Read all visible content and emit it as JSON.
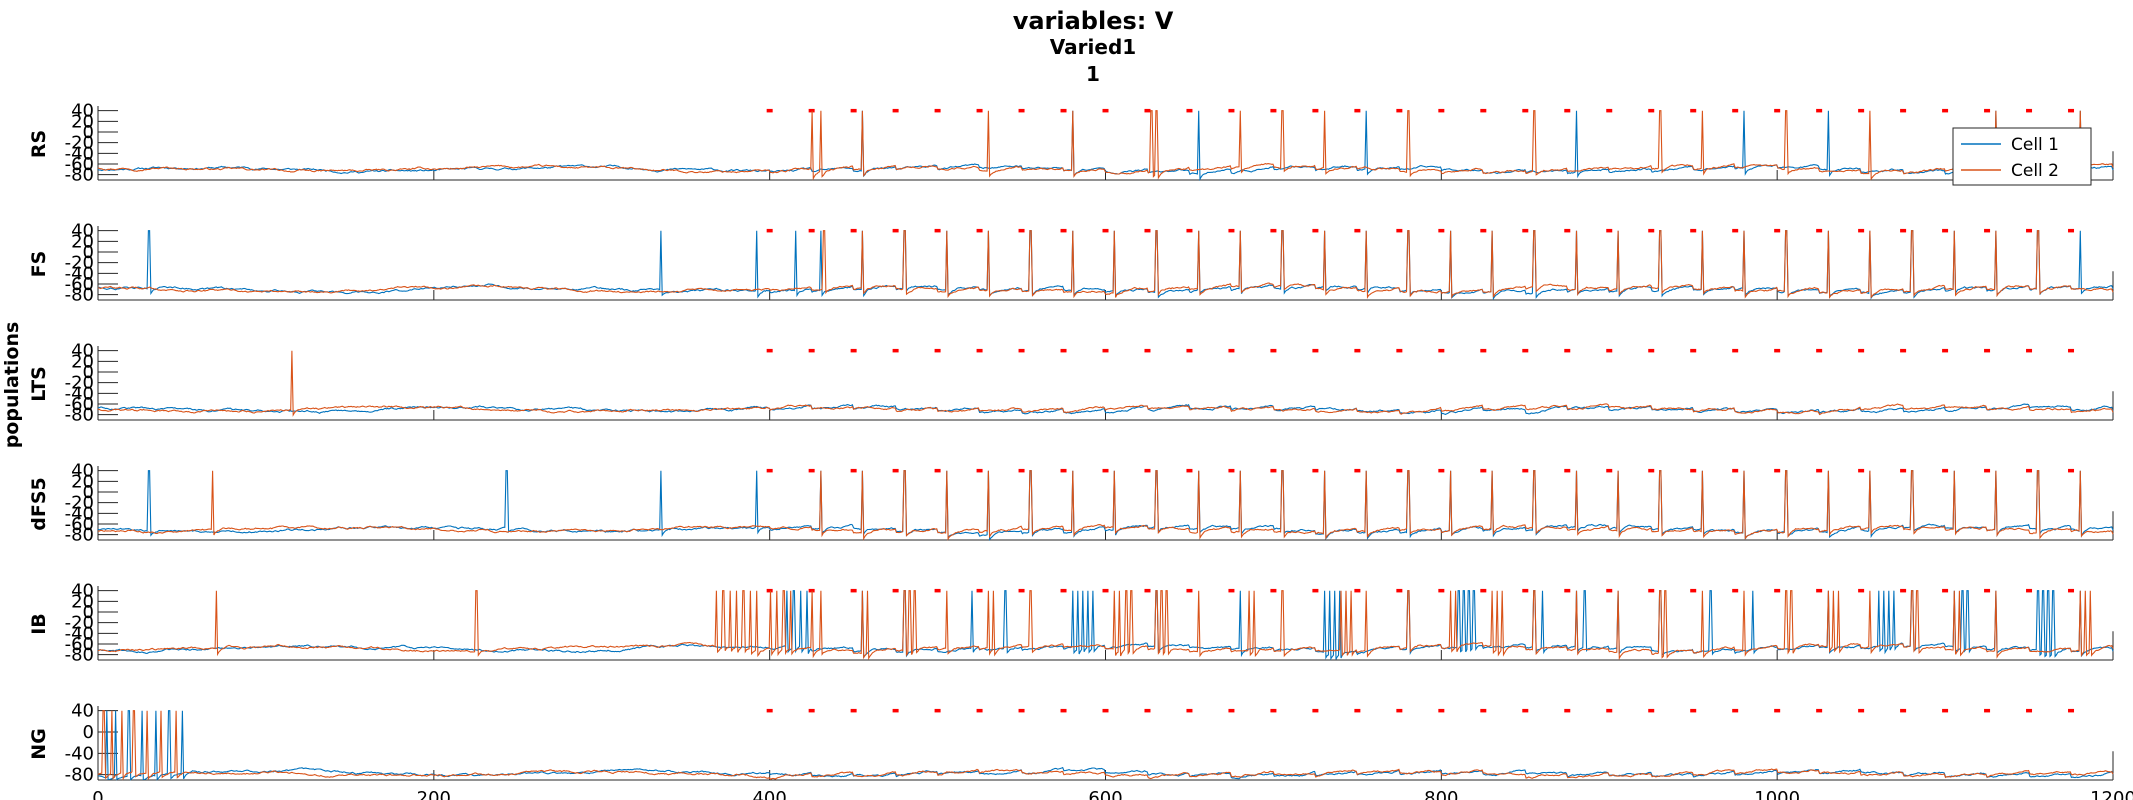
{
  "chart_data": {
    "type": "line",
    "title": "variables: V",
    "subtitle_1": "Varied1",
    "subtitle_2": "1",
    "common_ylabel": "populations",
    "x_ticks": [
      0,
      200,
      400,
      600,
      800,
      1000,
      1200
    ],
    "xlim": [
      0,
      1200
    ],
    "ylim": [
      -90,
      45
    ],
    "y_ticks": [
      40,
      20,
      0,
      -20,
      -40,
      -60,
      -80
    ],
    "y_tick_labels": [
      "40",
      "20",
      "0",
      "-20",
      "-40",
      "-60",
      "-80"
    ],
    "ng_y_ticks": [
      40,
      0,
      -40,
      -80
    ],
    "ng_y_tick_labels": [
      "40",
      "0",
      "-40",
      "-80"
    ],
    "legend": {
      "location": "top-right of RS panel",
      "entries": [
        {
          "label": "Cell 1",
          "color": "#0072BD"
        },
        {
          "label": "Cell 2",
          "color": "#D95319"
        }
      ]
    },
    "colors": {
      "cell1": "#0072BD",
      "cell2": "#D95319",
      "stim_marker": "#FF0000"
    },
    "stim_markers": {
      "start": 400,
      "period": 25,
      "end": 1180,
      "y": 40
    },
    "panels": [
      {
        "name": "RS",
        "baseline": -70,
        "cell1_spikes": [
          455,
          580,
          655,
          755,
          880,
          980,
          1030,
          1130,
          1180
        ],
        "cell2_spikes": [
          425,
          430,
          455,
          530,
          580,
          627,
          630,
          680,
          705,
          730,
          780,
          855,
          930,
          955,
          1005,
          1055,
          1130,
          1180
        ]
      },
      {
        "name": "FS",
        "baseline": -70,
        "cell1_spikes": [
          30,
          335,
          392,
          415,
          430,
          455,
          480,
          505,
          530,
          555,
          580,
          605,
          630,
          655,
          680,
          705,
          730,
          755,
          780,
          805,
          830,
          855,
          880,
          905,
          930,
          955,
          980,
          1005,
          1030,
          1055,
          1080,
          1105,
          1130,
          1155,
          1180
        ],
        "cell2_spikes": [
          432,
          455,
          480,
          505,
          530,
          555,
          580,
          605,
          630,
          655,
          680,
          705,
          730,
          755,
          780,
          805,
          830,
          855,
          880,
          905,
          930,
          955,
          980,
          1005,
          1030,
          1055,
          1080,
          1105,
          1130,
          1155
        ]
      },
      {
        "name": "LTS",
        "baseline": -70,
        "cell1_spikes": [],
        "cell2_spikes": [
          115
        ]
      },
      {
        "name": "dFS5",
        "baseline": -70,
        "cell1_spikes": [
          30,
          243,
          335,
          392,
          430,
          455,
          480,
          505,
          530,
          555,
          580,
          605,
          630,
          655,
          680,
          705,
          730,
          755,
          780,
          805,
          830,
          855,
          880,
          905,
          930,
          955,
          980,
          1005,
          1030,
          1055,
          1080,
          1105,
          1130,
          1155,
          1180
        ],
        "cell2_spikes": [
          68,
          430,
          455,
          480,
          505,
          530,
          555,
          580,
          605,
          630,
          655,
          680,
          705,
          730,
          755,
          780,
          805,
          830,
          855,
          880,
          905,
          930,
          955,
          980,
          1005,
          1030,
          1055,
          1080,
          1105,
          1130,
          1155,
          1180
        ]
      },
      {
        "name": "IB",
        "baseline": -68,
        "cell1_spikes": [
          410,
          414,
          418,
          422,
          455,
          480,
          520,
          540,
          580,
          583,
          586,
          589,
          592,
          630,
          680,
          730,
          733,
          736,
          739,
          780,
          810,
          813,
          816,
          819,
          855,
          860,
          880,
          885,
          905,
          930,
          960,
          985,
          1030,
          1060,
          1063,
          1066,
          1069,
          1080,
          1105,
          1110,
          1113,
          1130,
          1155,
          1158,
          1161,
          1164,
          1180
        ],
        "cell2_spikes": [
          70,
          225,
          368,
          372,
          376,
          380,
          384,
          388,
          392,
          400,
          404,
          408,
          412,
          425,
          430,
          455,
          458,
          480,
          483,
          486,
          505,
          530,
          533,
          555,
          605,
          608,
          612,
          615,
          630,
          633,
          636,
          655,
          685,
          688,
          705,
          740,
          743,
          746,
          755,
          780,
          805,
          808,
          830,
          833,
          836,
          855,
          880,
          905,
          930,
          933,
          955,
          980,
          1005,
          1008,
          1030,
          1033,
          1036,
          1055,
          1080,
          1083,
          1105,
          1108,
          1130,
          1180,
          1183,
          1186
        ]
      },
      {
        "name": "NG",
        "baseline": -78,
        "cell1_spikes": [
          5,
          10,
          18,
          26,
          34,
          42,
          50
        ],
        "cell2_spikes": [
          3,
          8,
          14,
          21,
          29,
          37,
          46
        ]
      }
    ]
  }
}
